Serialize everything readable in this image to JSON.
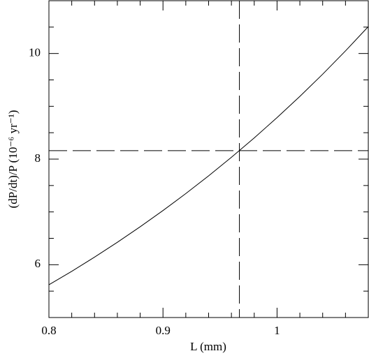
{
  "chart_data": {
    "type": "line",
    "x_label": "L (mm)",
    "y_label": "(dP/dt)/P (10⁻⁶ yr⁻¹)",
    "x": [
      0.8,
      0.82,
      0.84,
      0.86,
      0.88,
      0.9,
      0.92,
      0.94,
      0.96,
      0.98,
      1.0,
      1.02,
      1.04,
      1.06,
      1.08
    ],
    "series": [
      {
        "color": "#000000",
        "values": [
          5.62,
          5.875,
          6.144,
          6.425,
          6.719,
          7.026,
          7.347,
          7.683,
          8.035,
          8.402,
          8.786,
          9.188,
          9.608,
          10.049,
          10.509
        ]
      }
    ],
    "reference_lines": {
      "x": 0.967,
      "y": 8.16,
      "color": "#000000"
    },
    "xlim": [
      0.8,
      1.08
    ],
    "ylim": [
      5,
      11
    ],
    "xticks": [
      0.8,
      0.9,
      1
    ],
    "yticks": [
      6,
      8,
      10
    ],
    "x_minor_ticks": [
      0.82,
      0.84,
      0.86,
      0.88,
      0.92,
      0.94,
      0.96,
      0.98,
      1.02,
      1.04,
      1.06
    ],
    "y_minor_ticks": [
      5.5,
      6.5,
      7,
      7.5,
      8.5,
      9,
      9.5,
      10.5
    ]
  }
}
